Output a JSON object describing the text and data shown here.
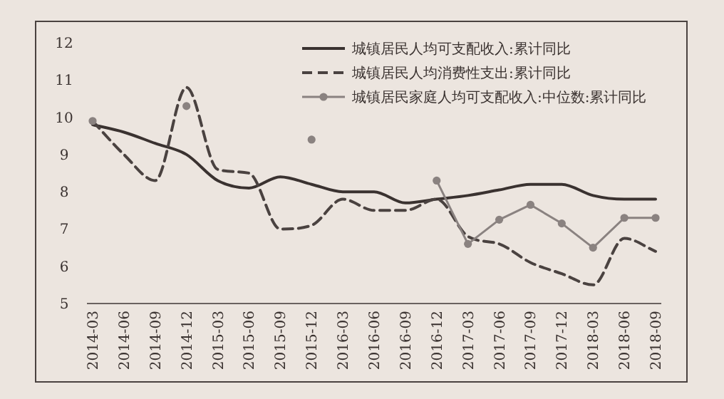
{
  "chart_data": {
    "type": "line",
    "categories": [
      "2014-03",
      "2014-06",
      "2014-09",
      "2014-12",
      "2015-03",
      "2015-06",
      "2015-09",
      "2015-12",
      "2016-03",
      "2016-06",
      "2016-09",
      "2016-12",
      "2017-03",
      "2017-06",
      "2017-09",
      "2017-12",
      "2018-03",
      "2018-06",
      "2018-09"
    ],
    "series": [
      {
        "name": "城镇居民人均可支配收入:累计同比",
        "color": "#3a3230",
        "line_style": "solid",
        "marker": "none",
        "values": [
          9.8,
          9.6,
          9.3,
          9.0,
          8.3,
          8.1,
          8.4,
          8.2,
          8.0,
          8.0,
          7.7,
          7.8,
          7.9,
          8.05,
          8.2,
          8.2,
          7.9,
          7.8,
          7.8
        ]
      },
      {
        "name": "城镇居民人均消费性支出:累计同比",
        "color": "#4a4240",
        "line_style": "dashed",
        "marker": "none",
        "values": [
          9.9,
          9.0,
          8.3,
          10.8,
          8.6,
          8.5,
          7.0,
          7.1,
          7.8,
          7.5,
          7.5,
          7.8,
          6.8,
          6.6,
          6.1,
          5.8,
          5.5,
          6.75,
          6.4
        ]
      },
      {
        "name": "城镇居民家庭人均可支配收入:中位数:累计同比",
        "color": "#8a8280",
        "line_style": "solid",
        "marker": "circle",
        "values": [
          9.9,
          null,
          null,
          10.3,
          null,
          null,
          null,
          9.4,
          null,
          null,
          null,
          8.3,
          6.6,
          7.25,
          7.65,
          7.15,
          6.5,
          7.3,
          7.3
        ]
      }
    ],
    "ylim": [
      5,
      12
    ],
    "yticks": [
      5,
      6,
      7,
      8,
      9,
      10,
      11,
      12
    ],
    "grid": false,
    "legend": "top right"
  }
}
